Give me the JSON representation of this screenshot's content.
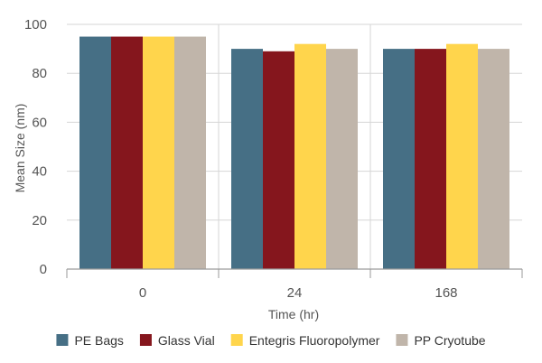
{
  "chart_data": {
    "type": "bar",
    "xlabel": "Time (hr)",
    "ylabel": "Mean Size (nm)",
    "categories": [
      "0",
      "24",
      "168"
    ],
    "ylim": [
      0,
      100
    ],
    "yticks": [
      0,
      20,
      40,
      60,
      80,
      100
    ],
    "grid": true,
    "legend_position": "bottom",
    "series": [
      {
        "name": "PE Bags",
        "color": "#466f85",
        "values": [
          95,
          90,
          90
        ]
      },
      {
        "name": "Glass Vial",
        "color": "#85161d",
        "values": [
          95,
          89,
          90
        ]
      },
      {
        "name": "Entegris Fluoropolymer",
        "color": "#ffd54c",
        "values": [
          95,
          92,
          92
        ]
      },
      {
        "name": "PP Cryotube",
        "color": "#c0b5aa",
        "values": [
          95,
          90,
          90
        ]
      }
    ]
  }
}
